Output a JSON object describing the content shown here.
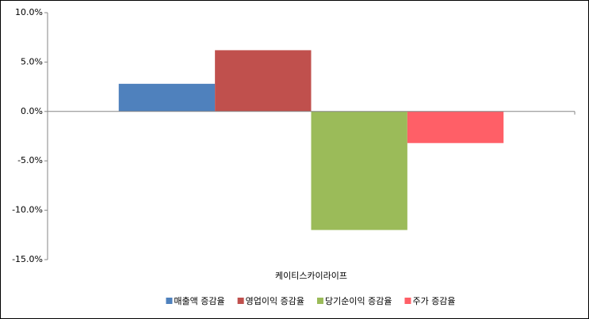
{
  "chart_data": {
    "type": "bar",
    "categories": [
      "케이티스카이라이프"
    ],
    "series": [
      {
        "name": "매출액 증감율",
        "color": "#4f81bd",
        "values": [
          2.8
        ]
      },
      {
        "name": "영업이익 증감율",
        "color": "#c0504d",
        "values": [
          6.2
        ]
      },
      {
        "name": "당기순이익 증감율",
        "color": "#9bbb59",
        "values": [
          -12.0
        ]
      },
      {
        "name": "주가 증감율",
        "color": "#ff5f67",
        "values": [
          -3.2
        ]
      }
    ],
    "ylim": [
      -15,
      10
    ],
    "yticks": [
      {
        "value": -15,
        "label": "-15.0%"
      },
      {
        "value": -10,
        "label": "-10.0%"
      },
      {
        "value": -5,
        "label": "-5.0%"
      },
      {
        "value": 0,
        "label": "0.0%"
      },
      {
        "value": 5,
        "label": "5.0%"
      },
      {
        "value": 10,
        "label": "10.0%"
      }
    ],
    "legend": "bottom"
  }
}
